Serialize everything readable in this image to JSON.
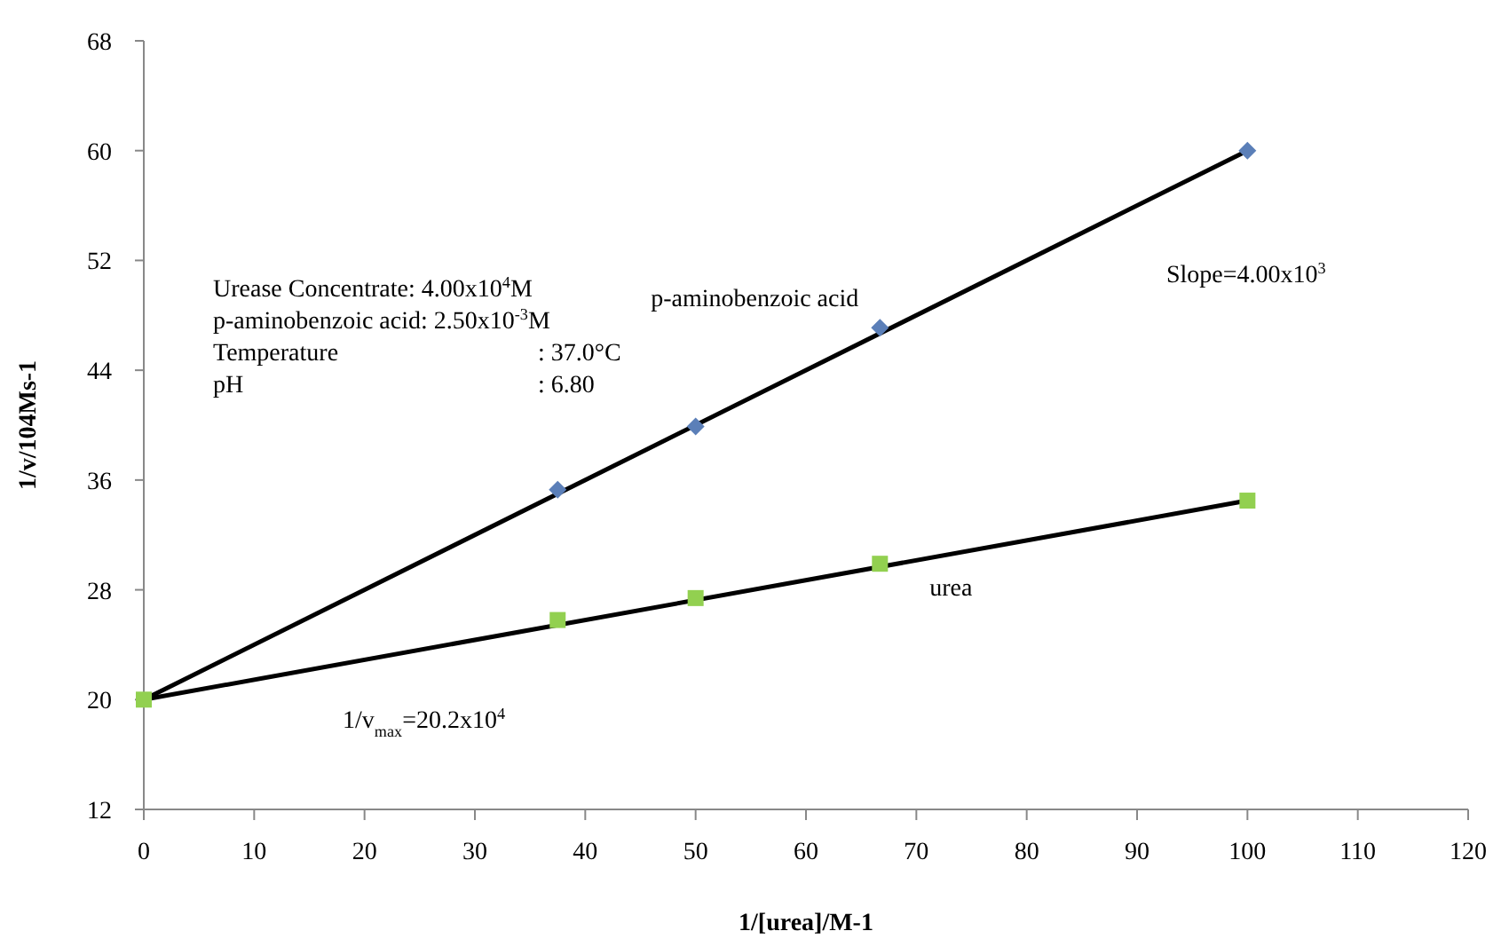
{
  "chart_data": {
    "type": "scatter",
    "xlabel": "1/[urea]/M-1",
    "ylabel": "1/v/104Ms-1",
    "xlim": [
      0,
      120
    ],
    "xticks": [
      0,
      10,
      20,
      30,
      40,
      50,
      60,
      70,
      80,
      90,
      100,
      110,
      120
    ],
    "ylim": [
      12,
      68
    ],
    "yticks": [
      12,
      20,
      28,
      36,
      44,
      52,
      60,
      68
    ],
    "grid": false,
    "legend": false,
    "series": [
      {
        "type": "line",
        "color": "#000000",
        "x": [
          0,
          100
        ],
        "values": [
          20,
          60
        ],
        "marker": "none"
      },
      {
        "type": "line",
        "color": "#000000",
        "x": [
          0,
          100
        ],
        "values": [
          20,
          34.5
        ],
        "marker": "none"
      },
      {
        "name": "p-aminobenzoic acid",
        "color": "#5b7fb8",
        "marker": "diamond",
        "x": [
          37.5,
          50,
          66.7,
          100
        ],
        "values": [
          35.3,
          39.9,
          47.1,
          60
        ]
      },
      {
        "name": "urea",
        "color": "#92d050",
        "marker": "square",
        "x": [
          0,
          37.5,
          50,
          66.7,
          100
        ],
        "values": [
          20,
          25.8,
          27.4,
          29.9,
          34.5
        ]
      }
    ],
    "annotations": [
      "Urease Concentrate: 4.00x10$^{4}$M",
      "p-aminobenzoic acid: 2.50x10$^{-3}$M",
      "Temperature : 37.0°C",
      "pH : 6.80",
      "Slope=4.00x10$^{3}$",
      "1/v$_{max}$=20.2x10$^{4}$"
    ]
  }
}
